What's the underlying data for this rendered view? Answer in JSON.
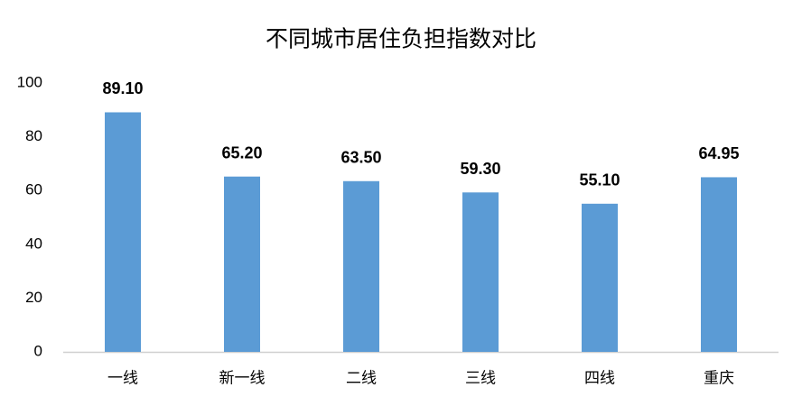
{
  "chart_data": {
    "type": "bar",
    "title": "不同城市居住负担指数对比",
    "categories": [
      "一线",
      "新一线",
      "二线",
      "三线",
      "四线",
      "重庆"
    ],
    "values": [
      89.1,
      65.2,
      63.5,
      59.3,
      55.1,
      64.95
    ],
    "value_labels": [
      "89.10",
      "65.20",
      "63.50",
      "59.30",
      "55.10",
      "64.95"
    ],
    "color": "#5b9bd5",
    "ylim": [
      0,
      100
    ],
    "yticks": [
      0,
      20,
      40,
      60,
      80,
      100
    ],
    "grid": false
  }
}
